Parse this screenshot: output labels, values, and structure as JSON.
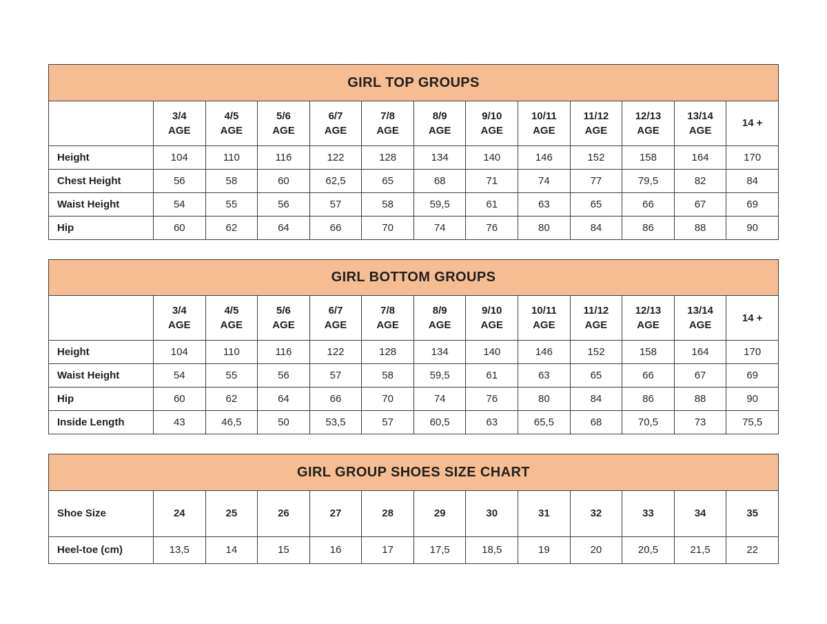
{
  "colors": {
    "title_bar_bg": "#f7bd92",
    "table_border": "#3b3b3b",
    "text": "#262626"
  },
  "chart_data": [
    {
      "type": "table",
      "title": "GIRL TOP GROUPS",
      "columns": [
        "3/4\nAGE",
        "4/5\nAGE",
        "5/6\nAGE",
        "6/7\nAGE",
        "7/8\nAGE",
        "8/9\nAGE",
        "9/10\nAGE",
        "10/11\nAGE",
        "11/12\nAGE",
        "12/13\nAGE",
        "13/14\nAGE",
        "14 +"
      ],
      "rows": [
        {
          "label": "Height",
          "values": [
            "104",
            "110",
            "116",
            "122",
            "128",
            "134",
            "140",
            "146",
            "152",
            "158",
            "164",
            "170"
          ]
        },
        {
          "label": "Chest Height",
          "values": [
            "56",
            "58",
            "60",
            "62,5",
            "65",
            "68",
            "71",
            "74",
            "77",
            "79,5",
            "82",
            "84"
          ]
        },
        {
          "label": "Waist Height",
          "values": [
            "54",
            "55",
            "56",
            "57",
            "58",
            "59,5",
            "61",
            "63",
            "65",
            "66",
            "67",
            "69"
          ]
        },
        {
          "label": "Hip",
          "values": [
            "60",
            "62",
            "64",
            "66",
            "70",
            "74",
            "76",
            "80",
            "84",
            "86",
            "88",
            "90"
          ]
        }
      ]
    },
    {
      "type": "table",
      "title": "GIRL BOTTOM GROUPS",
      "columns": [
        "3/4\nAGE",
        "4/5\nAGE",
        "5/6\nAGE",
        "6/7\nAGE",
        "7/8\nAGE",
        "8/9\nAGE",
        "9/10\nAGE",
        "10/11\nAGE",
        "11/12\nAGE",
        "12/13\nAGE",
        "13/14\nAGE",
        "14 +"
      ],
      "rows": [
        {
          "label": "Height",
          "values": [
            "104",
            "110",
            "116",
            "122",
            "128",
            "134",
            "140",
            "146",
            "152",
            "158",
            "164",
            "170"
          ]
        },
        {
          "label": "Waist Height",
          "values": [
            "54",
            "55",
            "56",
            "57",
            "58",
            "59,5",
            "61",
            "63",
            "65",
            "66",
            "67",
            "69"
          ]
        },
        {
          "label": "Hip",
          "values": [
            "60",
            "62",
            "64",
            "66",
            "70",
            "74",
            "76",
            "80",
            "84",
            "86",
            "88",
            "90"
          ]
        },
        {
          "label": "Inside Length",
          "values": [
            "43",
            "46,5",
            "50",
            "53,5",
            "57",
            "60,5",
            "63",
            "65,5",
            "68",
            "70,5",
            "73",
            "75,5"
          ]
        }
      ]
    },
    {
      "type": "table",
      "title": "GIRL GROUP SHOES SIZE CHART",
      "columns": null,
      "rows": [
        {
          "label": "Shoe Size",
          "bold": true,
          "tall": true,
          "values": [
            "24",
            "25",
            "26",
            "27",
            "28",
            "29",
            "30",
            "31",
            "32",
            "33",
            "34",
            "35"
          ]
        },
        {
          "label": "Heel-toe (cm)",
          "mid": true,
          "values": [
            "13,5",
            "14",
            "15",
            "16",
            "17",
            "17,5",
            "18,5",
            "19",
            "20",
            "20,5",
            "21,5",
            "22"
          ]
        }
      ]
    }
  ]
}
